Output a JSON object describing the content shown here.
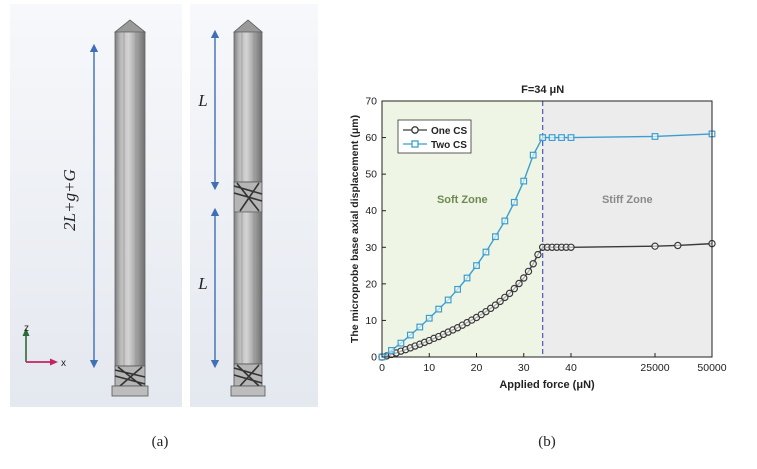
{
  "panel_a": {
    "caption": "(a)",
    "left_view": {
      "dimension_label": "2L+g+G"
    },
    "right_view": {
      "upper_label": "L",
      "lower_label": "L"
    },
    "axis_triad": {
      "z_label": "z",
      "x_label": "x"
    }
  },
  "panel_b": {
    "caption": "(b)"
  },
  "chart_data": {
    "type": "line",
    "title": "F=34 μN",
    "xlabel": "Applied force (μN)",
    "ylabel": "The microprobe base axial displacement (μm)",
    "x_tick_labels": [
      "0",
      "10",
      "20",
      "30",
      "40",
      "25000",
      "50000"
    ],
    "y_tick_labels": [
      "0",
      "10",
      "20",
      "30",
      "40",
      "50",
      "60",
      "70"
    ],
    "ylim": [
      0,
      70
    ],
    "x_scale": "piecewise: linear 0-40 μN, then compressed to 50000 μN",
    "grid": false,
    "legend_position": "top-left",
    "vertical_marker": {
      "x": 34,
      "style": "dashed",
      "color": "#5b5fc7"
    },
    "zones": [
      {
        "label": "Soft Zone",
        "x_start": 0,
        "x_end": 34,
        "color": "#eef5e4",
        "text_color": "#6e8a52"
      },
      {
        "label": "Stiff Zone",
        "x_start": 34,
        "x_end": 50000,
        "color": "#ececec",
        "text_color": "#8a8a8a"
      }
    ],
    "series": [
      {
        "name": "One CS",
        "color": "#3a3a3a",
        "marker": "circle",
        "x": [
          0,
          1,
          2,
          3,
          4,
          5,
          6,
          7,
          8,
          9,
          10,
          11,
          12,
          13,
          14,
          15,
          16,
          17,
          18,
          19,
          20,
          21,
          22,
          23,
          24,
          25,
          26,
          27,
          28,
          29,
          30,
          31,
          32,
          33,
          34,
          35,
          36,
          37,
          38,
          39,
          40,
          25000,
          35000,
          50000
        ],
        "y": [
          0,
          0.3,
          0.7,
          1.1,
          1.6,
          2.0,
          2.5,
          3.0,
          3.5,
          4.0,
          4.5,
          5.1,
          5.6,
          6.2,
          6.8,
          7.4,
          8.0,
          8.7,
          9.4,
          10.1,
          10.8,
          11.6,
          12.4,
          13.3,
          14.2,
          15.2,
          16.3,
          17.4,
          18.7,
          20.1,
          21.6,
          23.4,
          25.5,
          28.0,
          30.0,
          30.0,
          30.0,
          30.0,
          30.0,
          30.0,
          30.0,
          30.3,
          30.5,
          31.0
        ]
      },
      {
        "name": "Two CS",
        "color": "#3b9ed0",
        "marker": "square",
        "x": [
          0,
          2,
          4,
          6,
          8,
          10,
          12,
          14,
          16,
          18,
          20,
          22,
          24,
          26,
          28,
          30,
          32,
          34,
          36,
          38,
          40,
          25000,
          50000
        ],
        "y": [
          0,
          1.8,
          3.8,
          6.0,
          8.2,
          10.6,
          13.1,
          15.6,
          18.5,
          21.6,
          25.0,
          28.7,
          32.9,
          37.2,
          42.3,
          48.1,
          55.2,
          60.0,
          60.0,
          60.0,
          60.0,
          60.3,
          61.0
        ]
      }
    ]
  }
}
